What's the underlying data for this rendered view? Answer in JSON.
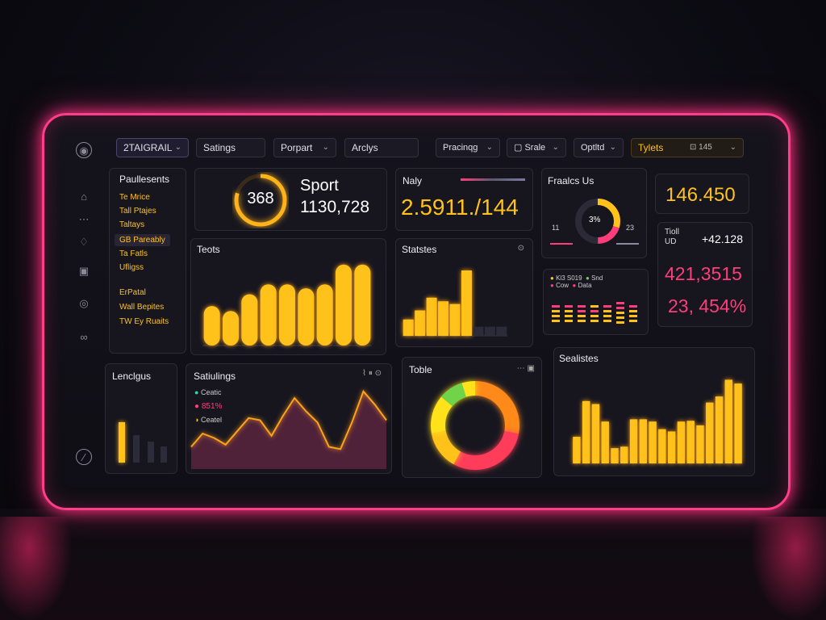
{
  "topbar": {
    "brand": "2TAIGRAIL",
    "settings": "Satings",
    "report": "Porpart",
    "analytics": "Arclys",
    "pricing": "Pracinqg",
    "scale": "Srale",
    "update": "Optltd",
    "types": "Tylets",
    "types_count": "145"
  },
  "left_list": {
    "title": "Paullesents",
    "items": [
      "Te Mrice",
      "Tall Ptajes",
      "Taltays",
      "GB Pareably",
      "Ta Fatls",
      "Ufligss",
      "ErPatal",
      "Wall Bepites",
      "TW Ey Ruaits"
    ]
  },
  "sport_card": {
    "ring_value": "368",
    "label": "Sport",
    "value": "1130,728"
  },
  "naly_card": {
    "title": "Naly",
    "value": "2.5911./144"
  },
  "practice_card": {
    "title": "Fraalcs Us",
    "center": "3%",
    "left_top": "tl",
    "left_val": "11",
    "right_top": "%",
    "right_val": "23"
  },
  "big_stat": {
    "value": "146.450"
  },
  "right_stats": {
    "label1": "Tioll",
    "label2": "UD",
    "delta": "+42.128",
    "value1": "421,3515",
    "value2": "23, 454%"
  },
  "tests_chart": {
    "title": "Teots"
  },
  "statistics_chart": {
    "title": "Statstes"
  },
  "mini_chart": {
    "legend": [
      "Kl3 S019",
      "Snd",
      "Cow",
      "Data"
    ]
  },
  "legends_card": {
    "title": "Lenclgus"
  },
  "settings_card": {
    "title": "Satiulings",
    "legend1": "Ceatic",
    "legend2": "851%",
    "legend3": "Ceatel"
  },
  "table_card": {
    "title": "Toble"
  },
  "statistics2": {
    "title": "Sealistes"
  },
  "chart_data": [
    {
      "type": "bar",
      "title": "Teots",
      "values": [
        40,
        35,
        52,
        62,
        62,
        58,
        62,
        82,
        82
      ],
      "ylim": [
        0,
        90
      ],
      "colors": {
        "bar": "#ffc21a"
      }
    },
    {
      "type": "bar",
      "title": "Statstes",
      "values": [
        18,
        28,
        42,
        38,
        35,
        72,
        10,
        10,
        10
      ],
      "ylim": [
        0,
        80
      ]
    },
    {
      "type": "bar",
      "title": "Sealistes",
      "values": [
        35,
        82,
        78,
        55,
        20,
        22,
        58,
        58,
        55,
        45,
        42,
        55,
        56,
        50,
        80,
        88,
        110,
        105
      ],
      "ylim": [
        0,
        120
      ]
    },
    {
      "type": "area",
      "title": "Satiulings",
      "values": [
        20,
        32,
        28,
        22,
        34,
        46,
        44,
        30,
        48,
        64,
        52,
        42,
        20,
        18,
        42,
        70,
        58,
        44
      ]
    },
    {
      "type": "pie",
      "title": "Toble",
      "values": [
        28,
        30,
        14,
        28
      ],
      "colors": [
        "#ff8a1a",
        "#ff3d5a",
        "#ffc21a",
        "#ffe21a"
      ]
    }
  ],
  "colors": {
    "accent": "#ffc21a",
    "pink": "#ff3d8a",
    "panel": "#17161f"
  }
}
